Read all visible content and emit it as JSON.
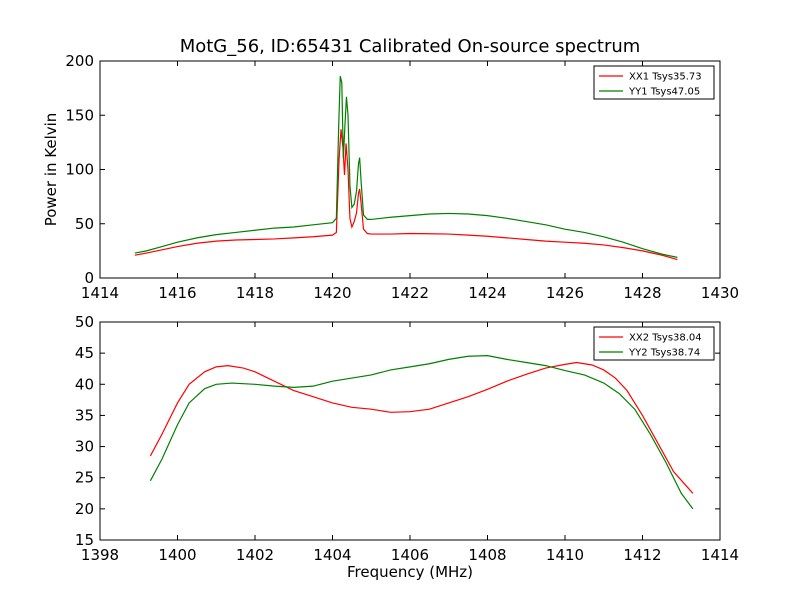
{
  "title": "MotG_56, ID:65431 Calibrated On-source spectrum",
  "colors": {
    "xx": "#ff0000",
    "yy": "#008000"
  },
  "chart_data": [
    {
      "type": "line",
      "title": "MotG_56, ID:65431 Calibrated On-source spectrum",
      "xlabel": "",
      "ylabel": "Power in Kelvin",
      "xlim": [
        1414,
        1430
      ],
      "ylim": [
        0,
        200
      ],
      "xticks": [
        1414,
        1416,
        1418,
        1420,
        1422,
        1424,
        1426,
        1428,
        1430
      ],
      "yticks": [
        0,
        50,
        100,
        150,
        200
      ],
      "legend_position": "top-right",
      "grid": false,
      "series": [
        {
          "name": "XX1 Tsys35.73",
          "color": "#ff0000",
          "points": [
            [
              1414.9,
              21
            ],
            [
              1415.2,
              23
            ],
            [
              1415.6,
              26
            ],
            [
              1416,
              29
            ],
            [
              1416.5,
              32
            ],
            [
              1417,
              34
            ],
            [
              1417.5,
              35
            ],
            [
              1418,
              35.5
            ],
            [
              1418.5,
              36
            ],
            [
              1419,
              37
            ],
            [
              1419.5,
              38
            ],
            [
              1420,
              39.5
            ],
            [
              1420.1,
              42
            ],
            [
              1420.17,
              110
            ],
            [
              1420.22,
              137
            ],
            [
              1420.27,
              120
            ],
            [
              1420.31,
              95
            ],
            [
              1420.35,
              124
            ],
            [
              1420.4,
              100
            ],
            [
              1420.45,
              55
            ],
            [
              1420.5,
              47
            ],
            [
              1420.56,
              52
            ],
            [
              1420.62,
              60
            ],
            [
              1420.67,
              78
            ],
            [
              1420.7,
              82
            ],
            [
              1420.74,
              68
            ],
            [
              1420.8,
              45
            ],
            [
              1420.9,
              41
            ],
            [
              1421,
              40.5
            ],
            [
              1421.5,
              40.5
            ],
            [
              1422,
              41
            ],
            [
              1422.5,
              40.8
            ],
            [
              1423,
              40.5
            ],
            [
              1423.5,
              39.5
            ],
            [
              1424,
              38.5
            ],
            [
              1424.5,
              37
            ],
            [
              1425,
              35.5
            ],
            [
              1425.5,
              34
            ],
            [
              1426,
              33
            ],
            [
              1426.5,
              32
            ],
            [
              1427,
              30.5
            ],
            [
              1427.5,
              28
            ],
            [
              1428,
              25
            ],
            [
              1428.5,
              21
            ],
            [
              1428.9,
              17
            ]
          ]
        },
        {
          "name": "YY1 Tsys47.05",
          "color": "#008000",
          "points": [
            [
              1414.9,
              23
            ],
            [
              1415.2,
              25
            ],
            [
              1415.6,
              29
            ],
            [
              1416,
              33
            ],
            [
              1416.5,
              37
            ],
            [
              1417,
              40
            ],
            [
              1417.5,
              42
            ],
            [
              1418,
              44
            ],
            [
              1418.5,
              46
            ],
            [
              1419,
              47
            ],
            [
              1419.5,
              49
            ],
            [
              1420,
              51
            ],
            [
              1420.1,
              55
            ],
            [
              1420.16,
              140
            ],
            [
              1420.2,
              186
            ],
            [
              1420.24,
              180
            ],
            [
              1420.28,
              110
            ],
            [
              1420.32,
              140
            ],
            [
              1420.36,
              167
            ],
            [
              1420.4,
              150
            ],
            [
              1420.45,
              85
            ],
            [
              1420.5,
              65
            ],
            [
              1420.56,
              68
            ],
            [
              1420.62,
              80
            ],
            [
              1420.67,
              105
            ],
            [
              1420.7,
              111
            ],
            [
              1420.74,
              88
            ],
            [
              1420.8,
              58
            ],
            [
              1420.9,
              54
            ],
            [
              1421,
              54
            ],
            [
              1421.5,
              56
            ],
            [
              1422,
              57.5
            ],
            [
              1422.5,
              59
            ],
            [
              1423,
              59.5
            ],
            [
              1423.5,
              59
            ],
            [
              1424,
              57.5
            ],
            [
              1424.5,
              55
            ],
            [
              1425,
              52
            ],
            [
              1425.5,
              49
            ],
            [
              1426,
              45
            ],
            [
              1426.5,
              42
            ],
            [
              1427,
              38
            ],
            [
              1427.5,
              33
            ],
            [
              1428,
              27
            ],
            [
              1428.5,
              22
            ],
            [
              1428.9,
              19
            ]
          ]
        }
      ]
    },
    {
      "type": "line",
      "title": "",
      "xlabel": "Frequency (MHz)",
      "ylabel": "",
      "xlim": [
        1398,
        1414
      ],
      "ylim": [
        15,
        50
      ],
      "xticks": [
        1398,
        1400,
        1402,
        1404,
        1406,
        1408,
        1410,
        1412,
        1414
      ],
      "yticks": [
        15,
        20,
        25,
        30,
        35,
        40,
        45,
        50
      ],
      "legend_position": "top-right",
      "grid": false,
      "series": [
        {
          "name": "XX2 Tsys38.04",
          "color": "#ff0000",
          "points": [
            [
              1399.3,
              28.5
            ],
            [
              1399.6,
              32
            ],
            [
              1400,
              37
            ],
            [
              1400.3,
              40
            ],
            [
              1400.7,
              42
            ],
            [
              1401,
              42.8
            ],
            [
              1401.3,
              43
            ],
            [
              1401.7,
              42.6
            ],
            [
              1402,
              42
            ],
            [
              1402.5,
              40.5
            ],
            [
              1403,
              39
            ],
            [
              1403.5,
              38
            ],
            [
              1404,
              37
            ],
            [
              1404.5,
              36.3
            ],
            [
              1405,
              36
            ],
            [
              1405.5,
              35.5
            ],
            [
              1406,
              35.6
            ],
            [
              1406.5,
              36
            ],
            [
              1407,
              37
            ],
            [
              1407.5,
              38
            ],
            [
              1408,
              39.2
            ],
            [
              1408.5,
              40.5
            ],
            [
              1409,
              41.6
            ],
            [
              1409.5,
              42.6
            ],
            [
              1410,
              43.2
            ],
            [
              1410.3,
              43.5
            ],
            [
              1410.7,
              43.1
            ],
            [
              1411,
              42.3
            ],
            [
              1411.3,
              41
            ],
            [
              1411.6,
              39
            ],
            [
              1412,
              35
            ],
            [
              1412.4,
              30.5
            ],
            [
              1412.8,
              26
            ],
            [
              1413.3,
              22.5
            ]
          ]
        },
        {
          "name": "YY2 Tsys38.74",
          "color": "#008000",
          "points": [
            [
              1399.3,
              24.5
            ],
            [
              1399.6,
              28
            ],
            [
              1400,
              33.5
            ],
            [
              1400.3,
              37
            ],
            [
              1400.7,
              39.3
            ],
            [
              1401,
              40
            ],
            [
              1401.4,
              40.2
            ],
            [
              1402,
              40
            ],
            [
              1402.5,
              39.7
            ],
            [
              1403,
              39.5
            ],
            [
              1403.5,
              39.7
            ],
            [
              1404,
              40.5
            ],
            [
              1404.5,
              41
            ],
            [
              1405,
              41.5
            ],
            [
              1405.5,
              42.3
            ],
            [
              1406,
              42.8
            ],
            [
              1406.5,
              43.3
            ],
            [
              1407,
              44
            ],
            [
              1407.5,
              44.5
            ],
            [
              1408,
              44.6
            ],
            [
              1408.5,
              44
            ],
            [
              1409,
              43.5
            ],
            [
              1409.5,
              43
            ],
            [
              1410,
              42.2
            ],
            [
              1410.5,
              41.5
            ],
            [
              1411,
              40.2
            ],
            [
              1411.4,
              38.5
            ],
            [
              1411.8,
              36
            ],
            [
              1412.2,
              32
            ],
            [
              1412.6,
              27.5
            ],
            [
              1413,
              22.5
            ],
            [
              1413.3,
              20
            ]
          ]
        }
      ]
    }
  ]
}
